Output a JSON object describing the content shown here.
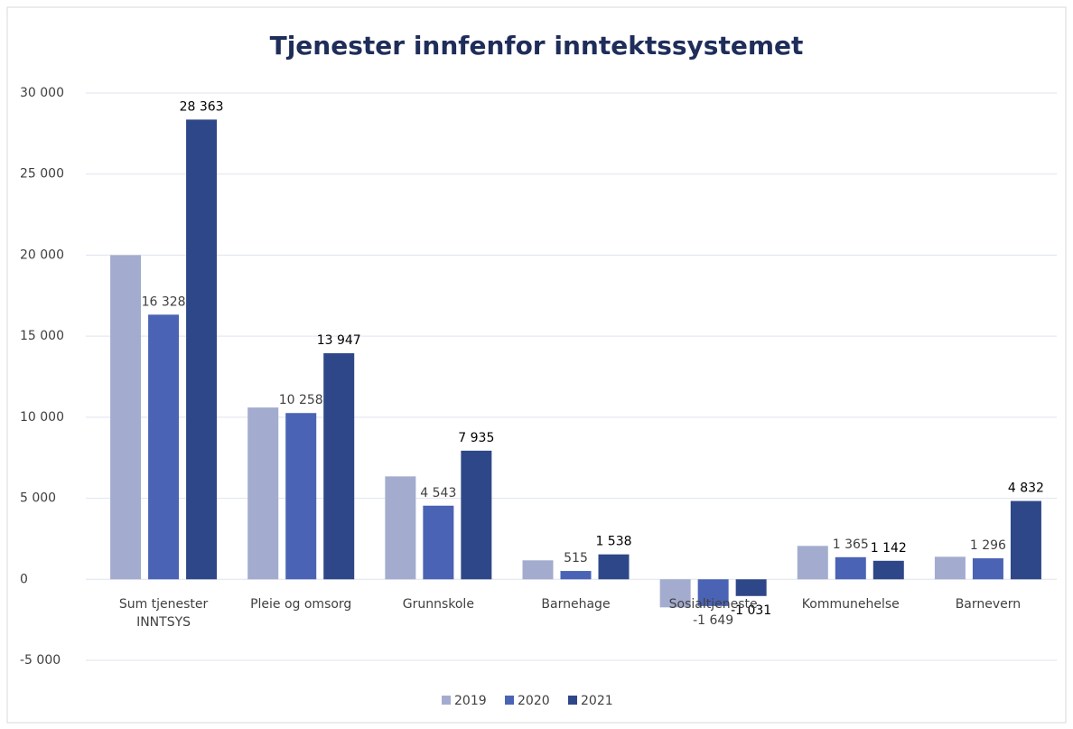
{
  "chart_data": {
    "type": "bar",
    "title": "Tjenester innfenfor inntektssystemet",
    "categories": [
      "Sum tjenester INNTSYS",
      "Pleie og omsorg",
      "Grunnskole",
      "Barnehage",
      "Sosialtjeneste",
      "Kommunehelse",
      "Barnevern"
    ],
    "series": [
      {
        "name": "2019",
        "color": "#a3acce",
        "values": [
          20000,
          10600,
          6350,
          1170,
          -1730,
          2060,
          1390
        ]
      },
      {
        "name": "2020",
        "color": "#4a63b5",
        "values": [
          16328,
          10258,
          4543,
          515,
          -1649,
          1365,
          1296
        ],
        "value_labels": [
          "16 328",
          "10 258",
          "4 543",
          "515",
          "-1 649",
          "1 365",
          "1 296"
        ]
      },
      {
        "name": "2021",
        "color": "#2e4788",
        "values": [
          28363,
          13947,
          7935,
          1538,
          -1031,
          1142,
          4832
        ],
        "value_labels": [
          "28 363",
          "13 947",
          "7 935",
          "1 538",
          "-1 031",
          "1 142",
          "4 832"
        ]
      }
    ],
    "ylim": [
      -5000,
      30000
    ],
    "yticks": [
      {
        "value": -5000,
        "label": "-5 000"
      },
      0,
      {
        "value": 5000,
        "label": "5 000"
      },
      {
        "value": 10000,
        "label": "10 000"
      },
      {
        "value": 15000,
        "label": "15 000"
      },
      {
        "value": 20000,
        "label": "20 000"
      },
      {
        "value": 25000,
        "label": "25 000"
      },
      {
        "value": 30000,
        "label": "30 000"
      }
    ],
    "grid": true,
    "legend": "bottom"
  }
}
